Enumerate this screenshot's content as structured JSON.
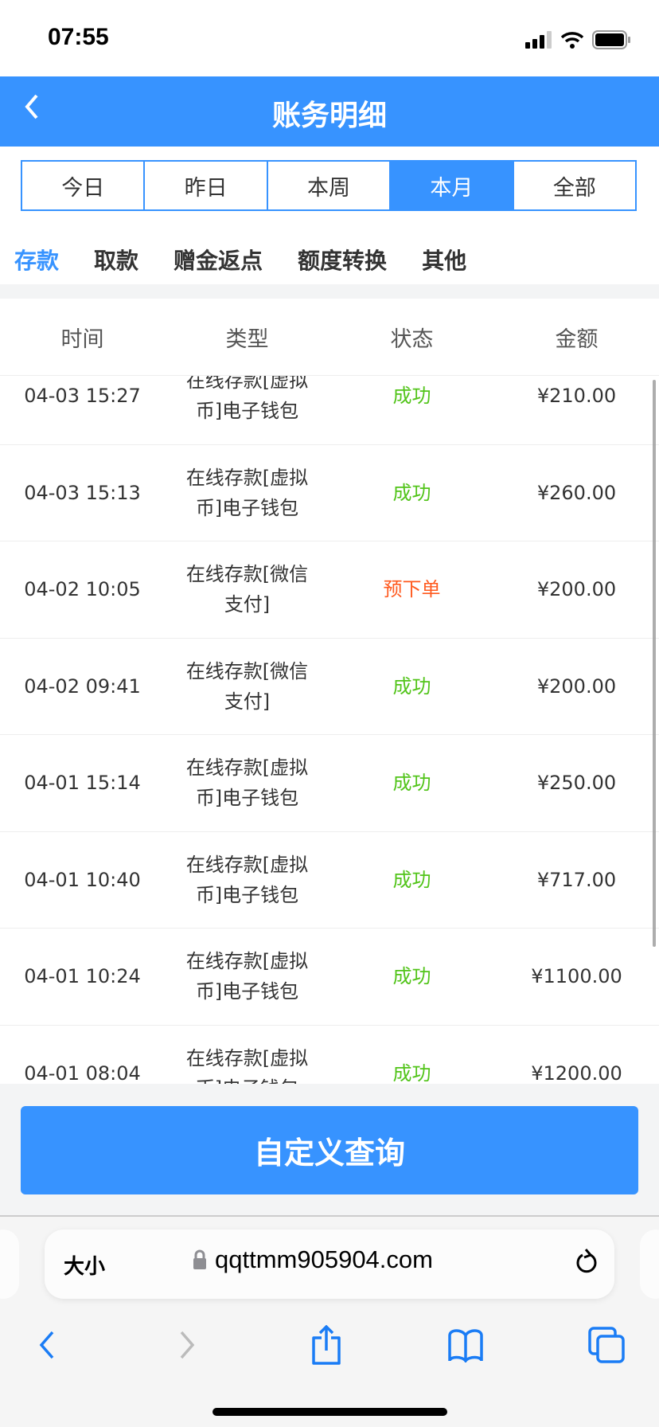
{
  "status_bar": {
    "time": "07:55"
  },
  "header": {
    "title": "账务明细"
  },
  "period_tabs": [
    {
      "label": "今日"
    },
    {
      "label": "昨日"
    },
    {
      "label": "本周"
    },
    {
      "label": "本月",
      "active": true
    },
    {
      "label": "全部"
    }
  ],
  "category_tabs": [
    {
      "label": "存款",
      "active": true
    },
    {
      "label": "取款"
    },
    {
      "label": "赠金返点"
    },
    {
      "label": "额度转换"
    },
    {
      "label": "其他"
    }
  ],
  "table": {
    "columns": [
      "时间",
      "类型",
      "状态",
      "金额"
    ],
    "rows": [
      {
        "time": "04-03 15:27",
        "type": "在线存款[虚拟币]电子钱包",
        "status": "成功",
        "amount": "¥210.00"
      },
      {
        "time": "04-03 15:13",
        "type": "在线存款[虚拟币]电子钱包",
        "status": "成功",
        "amount": "¥260.00"
      },
      {
        "time": "04-02 10:05",
        "type": "在线存款[微信支付]",
        "status": "预下单",
        "amount": "¥200.00"
      },
      {
        "time": "04-02 09:41",
        "type": "在线存款[微信支付]",
        "status": "成功",
        "amount": "¥200.00"
      },
      {
        "time": "04-01 15:14",
        "type": "在线存款[虚拟币]电子钱包",
        "status": "成功",
        "amount": "¥250.00"
      },
      {
        "time": "04-01 10:40",
        "type": "在线存款[虚拟币]电子钱包",
        "status": "成功",
        "amount": "¥717.00"
      },
      {
        "time": "04-01 10:24",
        "type": "在线存款[虚拟币]电子钱包",
        "status": "成功",
        "amount": "¥1100.00"
      },
      {
        "time": "04-01 08:04",
        "type": "在线存款[虚拟币]电子钱包",
        "status": "成功",
        "amount": "¥1200.00"
      }
    ]
  },
  "custom_query_label": "自定义查询",
  "browser": {
    "text_size_label": "大小",
    "url": "qqttmm905904.com"
  },
  "colors": {
    "accent": "#3793ff",
    "success": "#52c41a",
    "pending": "#ff5a1f"
  }
}
